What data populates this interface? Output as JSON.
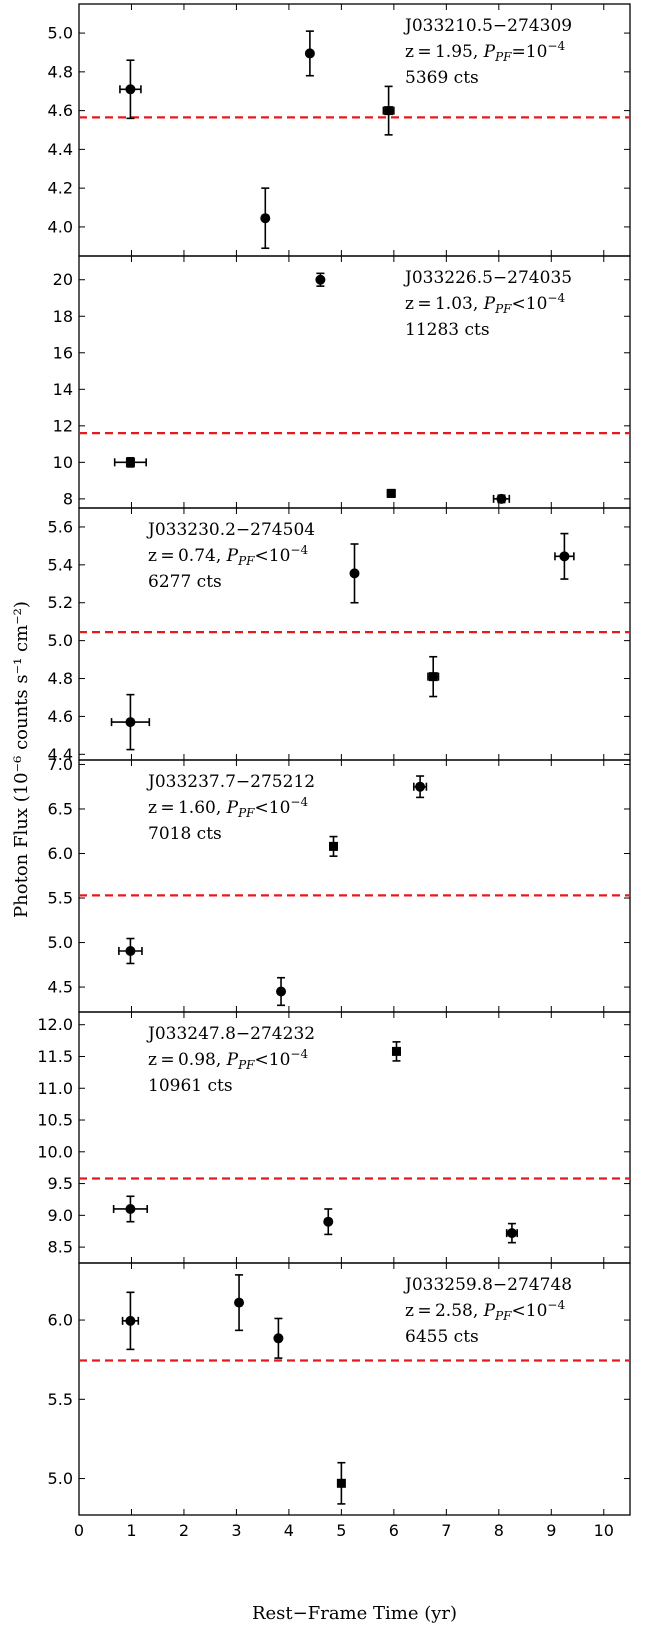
{
  "chart_data": {
    "type": "scatter",
    "xlabel": "Rest−Frame Time (yr)",
    "ylabel": "Photon Flux (10⁻⁶ counts s⁻¹ cm⁻²)",
    "xlim": [
      0,
      10.5
    ],
    "xticks": [
      "0",
      "1",
      "2",
      "3",
      "4",
      "5",
      "6",
      "7",
      "8",
      "9",
      "10"
    ],
    "grid": false,
    "colors": {
      "points": "#000000",
      "mean_line": "#e8191c"
    },
    "panels": [
      {
        "source": "J033210.5−274309",
        "redshift": "z = 1.95",
        "ppf": "P",
        "ppf_sub": "PF",
        "ppf_rel": "=",
        "ppf_val": "10",
        "ppf_exp": "−4",
        "counts": "5369 cts",
        "label_pos": "top-right",
        "ylim": [
          3.85,
          5.15
        ],
        "yticks": [
          4.0,
          4.2,
          4.4,
          4.6,
          4.8,
          5.0
        ],
        "ytick_labels": [
          "4.0",
          "4.2",
          "4.4",
          "4.6",
          "4.8",
          "5.0"
        ],
        "mean": 4.565,
        "points": [
          {
            "x": 0.98,
            "y": 4.71,
            "xerr": 0.2,
            "yerr": 0.15,
            "marker": "circle"
          },
          {
            "x": 3.55,
            "y": 4.045,
            "xerr": 0,
            "yerr": 0.155,
            "marker": "circle"
          },
          {
            "x": 4.4,
            "y": 4.895,
            "xerr": 0,
            "yerr": 0.115,
            "marker": "circle"
          },
          {
            "x": 5.9,
            "y": 4.6,
            "xerr": 0.1,
            "yerr": 0.125,
            "marker": "square"
          }
        ]
      },
      {
        "source": "J033226.5−274035",
        "redshift": "z = 1.03",
        "ppf": "P",
        "ppf_sub": "PF",
        "ppf_rel": "<",
        "ppf_val": "10",
        "ppf_exp": "−4",
        "counts": "11283 cts",
        "label_pos": "top-right",
        "ylim": [
          7.5,
          21.3
        ],
        "yticks": [
          8,
          10,
          12,
          14,
          16,
          18,
          20
        ],
        "ytick_labels": [
          "8",
          "10",
          "12",
          "14",
          "16",
          "18",
          "20"
        ],
        "mean": 11.6,
        "points": [
          {
            "x": 0.98,
            "y": 10.0,
            "xerr": 0.3,
            "yerr": 0.25,
            "marker": "square"
          },
          {
            "x": 4.6,
            "y": 20.0,
            "xerr": 0,
            "yerr": 0.35,
            "marker": "circle"
          },
          {
            "x": 5.95,
            "y": 8.3,
            "xerr": 0.07,
            "yerr": 0.2,
            "marker": "square"
          },
          {
            "x": 8.05,
            "y": 8.0,
            "xerr": 0.15,
            "yerr": 0.2,
            "marker": "circle"
          }
        ]
      },
      {
        "source": "J033230.2−274504",
        "redshift": "z = 0.74",
        "ppf": "P",
        "ppf_sub": "PF",
        "ppf_rel": "<",
        "ppf_val": "10",
        "ppf_exp": "−4",
        "counts": "6277 cts",
        "label_pos": "top-left",
        "ylim": [
          4.37,
          5.7
        ],
        "yticks": [
          4.4,
          4.6,
          4.8,
          5.0,
          5.2,
          5.4,
          5.6
        ],
        "ytick_labels": [
          "4.4",
          "4.6",
          "4.8",
          "5.0",
          "5.2",
          "5.4",
          "5.6"
        ],
        "mean": 5.045,
        "points": [
          {
            "x": 0.98,
            "y": 4.57,
            "xerr": 0.36,
            "yerr": 0.145,
            "marker": "circle"
          },
          {
            "x": 5.25,
            "y": 5.355,
            "xerr": 0,
            "yerr": 0.155,
            "marker": "circle"
          },
          {
            "x": 6.75,
            "y": 4.81,
            "xerr": 0.1,
            "yerr": 0.105,
            "marker": "square"
          },
          {
            "x": 9.25,
            "y": 5.445,
            "xerr": 0.18,
            "yerr": 0.12,
            "marker": "circle"
          }
        ]
      },
      {
        "source": "J033237.7−275212",
        "redshift": "z = 1.60",
        "ppf": "P",
        "ppf_sub": "PF",
        "ppf_rel": "<",
        "ppf_val": "10",
        "ppf_exp": "−4",
        "counts": "7018 cts",
        "label_pos": "top-left",
        "ylim": [
          4.22,
          7.05
        ],
        "yticks": [
          4.5,
          5.0,
          5.5,
          6.0,
          6.5,
          7.0
        ],
        "ytick_labels": [
          "4.5",
          "5.0",
          "5.5",
          "6.0",
          "6.5",
          "7.0"
        ],
        "mean": 5.53,
        "points": [
          {
            "x": 0.98,
            "y": 4.905,
            "xerr": 0.22,
            "yerr": 0.14,
            "marker": "circle"
          },
          {
            "x": 3.85,
            "y": 4.45,
            "xerr": 0,
            "yerr": 0.155,
            "marker": "circle"
          },
          {
            "x": 4.85,
            "y": 6.08,
            "xerr": 0.07,
            "yerr": 0.11,
            "marker": "square"
          },
          {
            "x": 6.5,
            "y": 6.75,
            "xerr": 0.12,
            "yerr": 0.12,
            "marker": "circle"
          }
        ]
      },
      {
        "source": "J033247.8−274232",
        "redshift": "z = 0.98",
        "ppf": "P",
        "ppf_sub": "PF",
        "ppf_rel": "<",
        "ppf_val": "10",
        "ppf_exp": "−4",
        "counts": "10961 cts",
        "label_pos": "top-left",
        "ylim": [
          8.25,
          12.2
        ],
        "yticks": [
          8.5,
          9.0,
          9.5,
          10.0,
          10.5,
          11.0,
          11.5,
          12.0
        ],
        "ytick_labels": [
          "8.5",
          "9.0",
          "9.5",
          "10.0",
          "10.5",
          "11.0",
          "11.5",
          "12.0"
        ],
        "mean": 9.58,
        "points": [
          {
            "x": 0.98,
            "y": 9.1,
            "xerr": 0.32,
            "yerr": 0.2,
            "marker": "circle"
          },
          {
            "x": 4.75,
            "y": 8.9,
            "xerr": 0,
            "yerr": 0.2,
            "marker": "circle"
          },
          {
            "x": 6.05,
            "y": 11.58,
            "xerr": 0.05,
            "yerr": 0.15,
            "marker": "square"
          },
          {
            "x": 8.25,
            "y": 8.72,
            "xerr": 0.1,
            "yerr": 0.15,
            "marker": "circle"
          }
        ]
      },
      {
        "source": "J033259.8−274748",
        "redshift": "z = 2.58",
        "ppf": "P",
        "ppf_sub": "PF",
        "ppf_rel": "<",
        "ppf_val": "10",
        "ppf_exp": "−4",
        "counts": "6455 cts",
        "label_pos": "top-right",
        "ylim": [
          4.77,
          6.36
        ],
        "yticks": [
          5.0,
          5.5,
          6.0
        ],
        "ytick_labels": [
          "5.0",
          "5.5",
          "6.0"
        ],
        "mean": 5.745,
        "points": [
          {
            "x": 0.98,
            "y": 5.995,
            "xerr": 0.15,
            "yerr": 0.18,
            "marker": "circle"
          },
          {
            "x": 3.05,
            "y": 6.11,
            "xerr": 0,
            "yerr": 0.175,
            "marker": "circle"
          },
          {
            "x": 3.8,
            "y": 5.885,
            "xerr": 0,
            "yerr": 0.125,
            "marker": "circle"
          },
          {
            "x": 5.0,
            "y": 4.97,
            "xerr": 0,
            "yerr": 0.13,
            "marker": "square"
          }
        ]
      }
    ]
  }
}
